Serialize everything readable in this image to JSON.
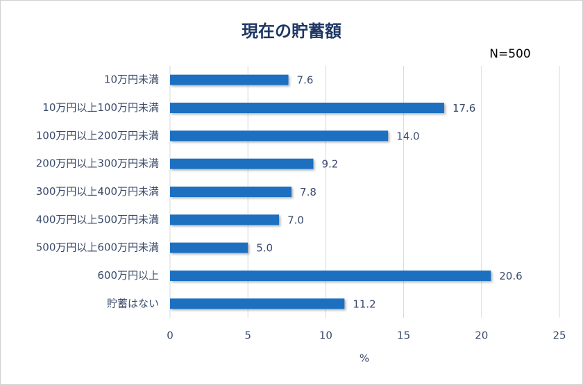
{
  "chart_data": {
    "type": "barh",
    "title": "現在の貯蓄額",
    "annotation": "N=500",
    "categories": [
      "10万円未満",
      "10万円以上100万円未満",
      "100万円以上200万円未満",
      "200万円以上300万円未満",
      "300万円以上400万円未満",
      "400万円以上500万円未満",
      "500万円以上600万円未満",
      "600万円以上",
      "貯蓄はない"
    ],
    "values": [
      7.6,
      17.6,
      14.0,
      9.2,
      7.8,
      7.0,
      5.0,
      20.6,
      11.2
    ],
    "value_labels": [
      "7.6",
      "17.6",
      "14.0",
      "9.2",
      "7.8",
      "7.0",
      "5.0",
      "20.6",
      "11.2"
    ],
    "color": "#1f6fbf",
    "xlabel": "%",
    "xlim": [
      0,
      25
    ],
    "xticks": [
      0,
      5,
      10,
      15,
      20,
      25
    ],
    "grid": true
  }
}
